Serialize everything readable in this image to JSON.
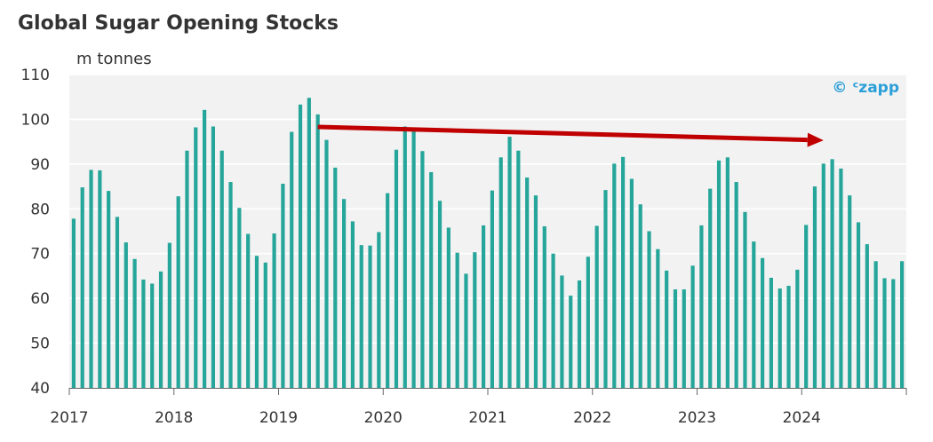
{
  "chart_data": {
    "type": "bar",
    "title": "Global Sugar Opening Stocks",
    "ylabel": "m tonnes",
    "xlabel": "",
    "ylim": [
      40,
      110
    ],
    "yticks": [
      40,
      50,
      60,
      70,
      80,
      90,
      100,
      110
    ],
    "xticks": [
      "2017",
      "2018",
      "2019",
      "2020",
      "2021",
      "2022",
      "2023",
      "2024"
    ],
    "x_start": "2017-01",
    "x_frequency": "monthly",
    "values": [
      77.8,
      84.8,
      88.7,
      88.6,
      84.0,
      78.2,
      72.5,
      68.8,
      64.2,
      63.3,
      66.0,
      72.4,
      82.8,
      93.0,
      98.2,
      102.1,
      98.4,
      93.0,
      86.0,
      80.2,
      74.4,
      69.5,
      68.0,
      74.5,
      85.6,
      97.2,
      103.3,
      104.8,
      101.1,
      95.4,
      89.2,
      82.2,
      77.2,
      71.9,
      71.8,
      74.8,
      83.5,
      93.2,
      98.4,
      97.6,
      92.9,
      88.2,
      81.8,
      75.8,
      70.2,
      65.5,
      70.3,
      76.3,
      84.1,
      91.5,
      96.1,
      93.0,
      87.0,
      83.0,
      76.1,
      70.0,
      65.1,
      60.6,
      64.0,
      69.3,
      76.2,
      84.2,
      90.1,
      91.6,
      86.7,
      81.0,
      75.0,
      71.0,
      66.2,
      62.0,
      62.0,
      67.3,
      76.3,
      84.5,
      90.8,
      91.5,
      86.0,
      79.3,
      72.7,
      69.0,
      64.6,
      62.2,
      62.8,
      66.4,
      76.4,
      85.0,
      90.1,
      91.1,
      89.0,
      83.0,
      77.0,
      72.1,
      68.3,
      64.5,
      64.3,
      68.3
    ],
    "bar_color": "#26a69a",
    "background_color": "#f2f2f2",
    "grid": true,
    "annotations": [
      {
        "type": "arrow",
        "color": "#c00000",
        "from": [
          "2019-05",
          98.3
        ],
        "to": [
          "2024-03",
          95.3
        ]
      }
    ],
    "watermark": "© ᶜzapp",
    "watermark_color": "#2b9fd8"
  }
}
